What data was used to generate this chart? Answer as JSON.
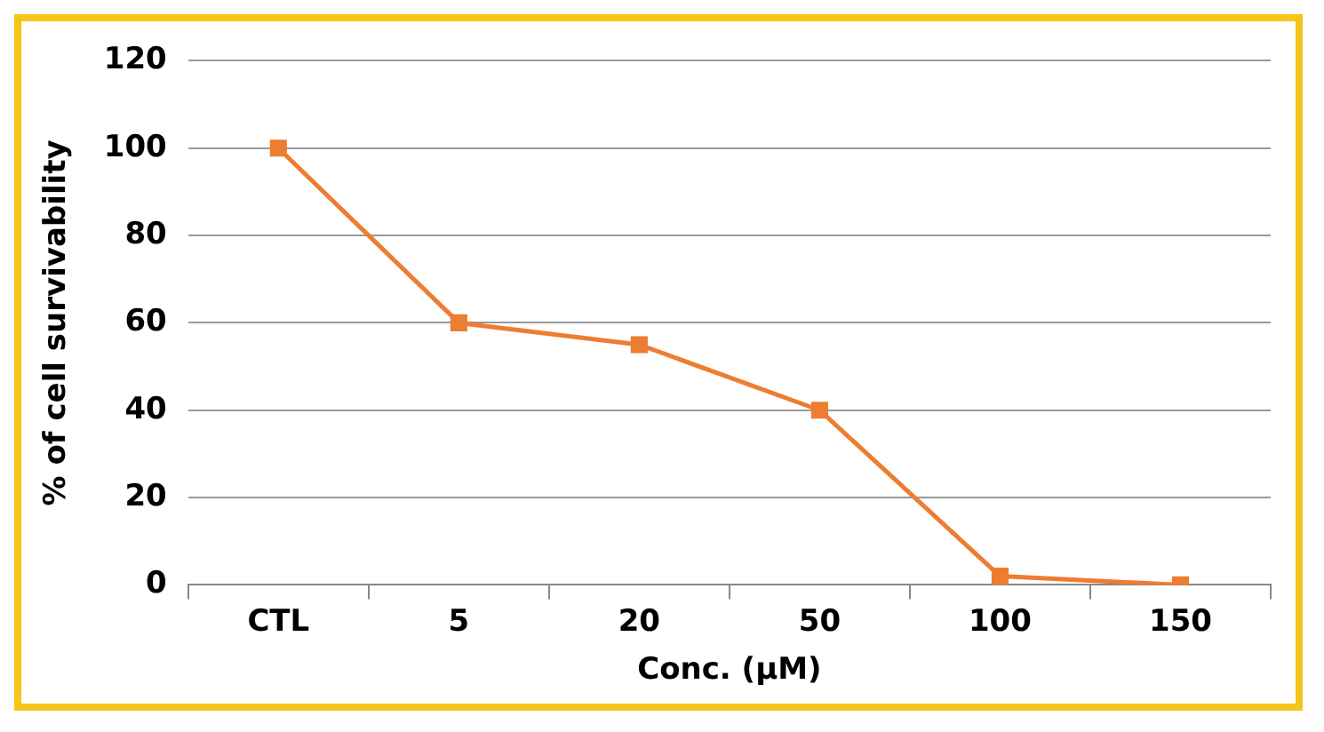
{
  "chart_data": {
    "type": "line",
    "xlabel": "Conc. (μM)",
    "ylabel": "% of cell survivability",
    "categories": [
      "CTL",
      "5",
      "20",
      "50",
      "100",
      "150"
    ],
    "series": [
      {
        "color": "#ed7d31",
        "values": [
          100,
          60,
          55,
          40,
          2,
          0
        ]
      }
    ],
    "ylim": [
      0,
      120
    ],
    "yticks": [
      0,
      20,
      40,
      60,
      80,
      100,
      120
    ],
    "grid": "y",
    "legend": false,
    "marker": "square",
    "line_style": "solid"
  }
}
